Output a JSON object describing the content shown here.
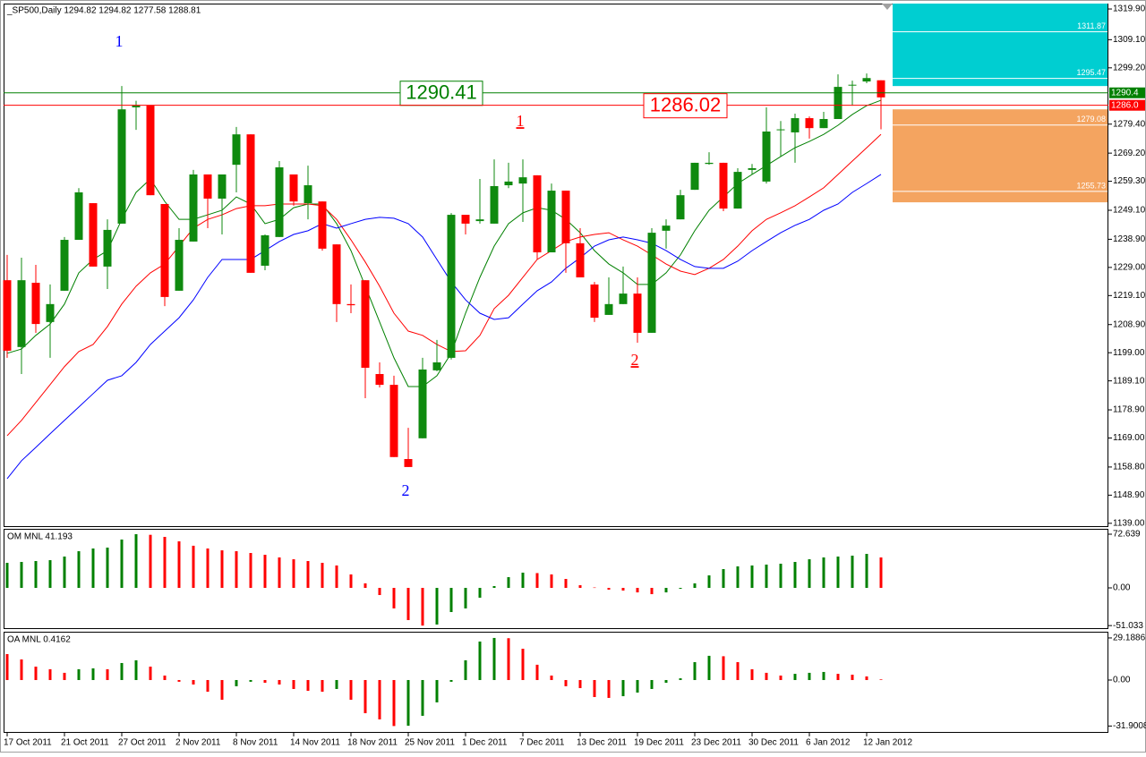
{
  "chart_data": [
    {
      "type": "candlestick",
      "title": "_SP500,Daily  1294.82 1294.82 1277.58 1288.81",
      "categories": [
        "17 Oct 2011",
        null,
        null,
        null,
        "21 Oct 2011",
        null,
        null,
        null,
        "27 Oct 2011",
        null,
        null,
        null,
        "2 Nov 2011",
        null,
        null,
        null,
        "8 Nov 2011",
        null,
        null,
        null,
        "14 Nov 2011",
        null,
        null,
        null,
        "18 Nov 2011",
        null,
        null,
        null,
        "25 Nov 2011",
        null,
        null,
        null,
        "1 Dec 2011",
        null,
        null,
        null,
        "7 Dec 2011",
        null,
        null,
        null,
        "13 Dec 2011",
        null,
        null,
        null,
        "19 Dec 2011",
        null,
        null,
        null,
        "23 Dec 2011",
        null,
        null,
        null,
        "30 Dec 2011",
        null,
        null,
        null,
        "6 Jan 2012",
        null,
        null,
        null,
        "12 Jan 2012",
        null
      ],
      "open": [
        1224.5,
        1201.0,
        1223.6,
        1209.8,
        1220.8,
        1238.7,
        1251.6,
        1229.3,
        1244.4,
        1285.3,
        1285.9,
        1251.3,
        1220.8,
        1238.1,
        1261.7,
        1253.2,
        1265.1,
        1275.8,
        1229.6,
        1239.7,
        1261.7,
        1251.6,
        1252.2,
        1237.1,
        1216.1,
        1224.5,
        1191.5,
        1187.7,
        1161.6,
        1168.9,
        1192.8,
        1197.2,
        1247.5,
        1245.3,
        1244.4,
        1257.9,
        1258.5,
        1261.4,
        1234.3,
        1256.0,
        1237.5,
        1223.0,
        1212.3,
        1216.1,
        1219.8,
        1206.0,
        1241.9,
        1245.9,
        1256.3,
        1265.4,
        1265.8,
        1249.7,
        1263.3,
        1259.2,
        1277.4,
        1276.5,
        1281.5,
        1278.0,
        1281.2,
        1292.8,
        1294.4,
        1294.82
      ],
      "high": [
        1233.4,
        1232.4,
        1229.9,
        1223.0,
        1239.7,
        1256.9,
        1251.6,
        1245.9,
        1292.8,
        1287.6,
        1285.9,
        1251.3,
        1242.8,
        1263.3,
        1261.7,
        1261.7,
        1278.4,
        1275.8,
        1240.6,
        1266.4,
        1261.7,
        1264.8,
        1252.2,
        1237.1,
        1223.0,
        1224.5,
        1195.6,
        1190.9,
        1172.6,
        1197.2,
        1203.5,
        1248.1,
        1247.5,
        1260.1,
        1267.0,
        1265.8,
        1267.0,
        1261.4,
        1258.5,
        1256.0,
        1242.8,
        1223.9,
        1225.5,
        1229.3,
        1225.5,
        1242.8,
        1245.9,
        1256.3,
        1265.8,
        1269.5,
        1265.8,
        1263.9,
        1265.4,
        1285.3,
        1280.5,
        1283.1,
        1282.1,
        1283.7,
        1296.9,
        1294.7,
        1297.2,
        1294.82
      ],
      "low": [
        1197.2,
        1191.5,
        1206.0,
        1197.2,
        1220.8,
        1238.7,
        1229.3,
        1221.4,
        1244.4,
        1277.4,
        1254.4,
        1215.4,
        1220.8,
        1238.1,
        1242.8,
        1240.6,
        1255.4,
        1227.1,
        1228.0,
        1239.7,
        1250.7,
        1245.9,
        1234.9,
        1209.8,
        1212.9,
        1183.0,
        1186.8,
        1162.3,
        1158.8,
        1168.9,
        1192.5,
        1196.6,
        1240.6,
        1244.4,
        1244.4,
        1256.9,
        1245.0,
        1231.8,
        1234.3,
        1227.1,
        1225.5,
        1209.8,
        1212.3,
        1216.1,
        1202.5,
        1206.0,
        1235.6,
        1245.9,
        1256.3,
        1265.1,
        1248.8,
        1249.7,
        1261.7,
        1258.5,
        1268.0,
        1265.8,
        1274.3,
        1278.0,
        1281.2,
        1285.9,
        1293.8,
        1277.58
      ],
      "close": [
        1199.7,
        1224.5,
        1209.1,
        1216.1,
        1238.7,
        1255.4,
        1229.3,
        1242.2,
        1284.6,
        1285.9,
        1254.4,
        1218.6,
        1238.7,
        1261.7,
        1253.2,
        1261.7,
        1275.8,
        1227.1,
        1240.3,
        1264.2,
        1252.2,
        1257.9,
        1235.6,
        1216.1,
        1215.7,
        1193.7,
        1187.7,
        1162.3,
        1158.8,
        1193.1,
        1195.6,
        1247.5,
        1244.4,
        1245.9,
        1257.6,
        1259.2,
        1260.7,
        1234.3,
        1256.0,
        1237.5,
        1225.5,
        1211.3,
        1216.1,
        1219.8,
        1206.0,
        1241.2,
        1243.7,
        1254.4,
        1265.8,
        1265.8,
        1249.7,
        1262.6,
        1263.9,
        1276.8,
        1277.4,
        1281.5,
        1278.0,
        1281.2,
        1292.5,
        1293.1,
        1295.6,
        1288.81
      ],
      "up_color": "#0f8a0f",
      "down_color": "#ff0000",
      "lines": [
        {
          "color": "#008000",
          "values": [
            1198.8,
            1200.3,
            1205.1,
            1209.1,
            1216.1,
            1227.1,
            1231.8,
            1234.9,
            1245.9,
            1255.4,
            1260.1,
            1252.2,
            1245.9,
            1245.9,
            1247.5,
            1249.1,
            1253.8,
            1251.3,
            1244.4,
            1245.9,
            1250.0,
            1251.3,
            1251.3,
            1244.4,
            1234.9,
            1222.4,
            1209.8,
            1197.2,
            1187.1,
            1187.1,
            1190.9,
            1198.8,
            1212.9,
            1225.5,
            1236.5,
            1244.4,
            1248.2,
            1250.0,
            1249.1,
            1245.9,
            1241.2,
            1234.9,
            1230.2,
            1227.1,
            1223.0,
            1223.0,
            1227.1,
            1233.4,
            1241.9,
            1249.1,
            1253.8,
            1258.5,
            1261.7,
            1264.8,
            1268.0,
            1271.1,
            1273.3,
            1275.8,
            1279.0,
            1282.8,
            1285.9,
            1287.8
          ]
        },
        {
          "color": "#ff0000",
          "values": [
            1169.8,
            1175.2,
            1181.5,
            1187.8,
            1194.1,
            1199.4,
            1201.9,
            1208.2,
            1216.1,
            1222.4,
            1227.1,
            1230.2,
            1236.5,
            1242.8,
            1245.9,
            1247.5,
            1249.7,
            1250.7,
            1250.7,
            1251.3,
            1251.3,
            1251.3,
            1250.7,
            1245.9,
            1238.7,
            1230.9,
            1222.4,
            1212.9,
            1206.6,
            1205.1,
            1201.9,
            1199.4,
            1199.7,
            1205.1,
            1214.5,
            1219.2,
            1225.5,
            1231.8,
            1234.9,
            1238.1,
            1239.7,
            1240.6,
            1241.2,
            1238.7,
            1236.5,
            1233.4,
            1230.2,
            1227.7,
            1226.5,
            1228.7,
            1231.8,
            1236.5,
            1241.9,
            1245.9,
            1248.2,
            1250.7,
            1253.8,
            1257.0,
            1261.7,
            1266.4,
            1271.1,
            1275.8
          ]
        },
        {
          "color": "#0000ff",
          "values": [
            1154.7,
            1161.0,
            1165.7,
            1170.5,
            1175.2,
            1179.9,
            1184.6,
            1189.3,
            1190.9,
            1195.6,
            1201.9,
            1206.6,
            1211.3,
            1217.6,
            1225.5,
            1231.8,
            1231.8,
            1231.8,
            1234.9,
            1238.1,
            1240.6,
            1241.9,
            1244.4,
            1242.8,
            1244.4,
            1245.9,
            1246.6,
            1246.3,
            1244.4,
            1239.7,
            1231.8,
            1223.9,
            1217.6,
            1212.9,
            1210.7,
            1211.3,
            1216.1,
            1220.8,
            1223.9,
            1228.7,
            1232.4,
            1236.5,
            1238.7,
            1239.7,
            1238.7,
            1237.5,
            1234.9,
            1231.8,
            1229.3,
            1228.7,
            1228.7,
            1231.2,
            1234.9,
            1238.1,
            1241.2,
            1243.8,
            1245.9,
            1249.1,
            1251.3,
            1255.4,
            1258.5,
            1261.7
          ]
        }
      ],
      "levels": [
        {
          "value": 1290.41,
          "axis_label": "1290.4",
          "color": "#008000"
        },
        {
          "value": 1286.02,
          "axis_label": "1286.0",
          "color": "#ff0000"
        }
      ],
      "zones": [
        {
          "color": "#00ced1",
          "range": [
            1292.8,
            1321.8
          ],
          "levels": [
            1311.87,
            1295.47
          ]
        },
        {
          "color": "#f4a460",
          "range": [
            1251.9,
            1284.6
          ],
          "levels": [
            1279.08,
            1255.73
          ]
        }
      ],
      "annotations": [
        {
          "text": "1",
          "color": "#0000ff"
        },
        {
          "text": "2",
          "color": "#0000ff"
        },
        {
          "text": "1",
          "color": "#ff0000"
        },
        {
          "text": "2",
          "color": "#ff0000"
        }
      ],
      "ylim": [
        1138.0,
        1321.8
      ],
      "yticks": [
        {
          "value": 1319.9,
          "label": "1319.90"
        },
        {
          "value": 1309.1,
          "label": "1309.10"
        },
        {
          "value": 1299.2,
          "label": "1299.20"
        },
        {
          "value": 1279.4,
          "label": "1279.40"
        },
        {
          "value": 1269.2,
          "label": "1269.20"
        },
        {
          "value": 1259.3,
          "label": "1259.30"
        },
        {
          "value": 1249.1,
          "label": "1249.10"
        },
        {
          "value": 1238.9,
          "label": "1238.90"
        },
        {
          "value": 1229,
          "label": "1229.00"
        },
        {
          "value": 1219.1,
          "label": "1219.10"
        },
        {
          "value": 1208.9,
          "label": "1208.90"
        },
        {
          "value": 1199,
          "label": "1199.00"
        },
        {
          "value": 1189.1,
          "label": "1189.10"
        },
        {
          "value": 1178.9,
          "label": "1178.90"
        },
        {
          "value": 1169,
          "label": "1169.00"
        },
        {
          "value": 1158.8,
          "label": "1158.80"
        },
        {
          "value": 1148.9,
          "label": "1148.90"
        },
        {
          "value": 1139,
          "label": "1139.00"
        }
      ]
    },
    {
      "type": "histogram",
      "title": "OM MNL 41.193",
      "up_color": "#008000",
      "down_color": "#ff0000",
      "first_color": "#008000",
      "values": [
        33.9,
        35.1,
        36.3,
        37.5,
        42.4,
        49.6,
        53.3,
        54.5,
        65.4,
        72.639,
        71.8,
        69.0,
        63.0,
        57.0,
        53.3,
        50.8,
        49.6,
        47.2,
        44.8,
        41.2,
        38.7,
        36.3,
        33.9,
        30.3,
        18.2,
        6.1,
        -9.7,
        -27.8,
        -43.6,
        -51.033,
        -49.6,
        -32.7,
        -27.8,
        -13.3,
        2.4,
        14.5,
        20.6,
        20.0,
        18.2,
        12.1,
        3.6,
        0.5,
        -2.4,
        -3.6,
        -6.1,
        -8.5,
        -6.1,
        -1.2,
        6.1,
        16.9,
        25.4,
        29.1,
        30.3,
        31.5,
        32.7,
        35.1,
        38.7,
        41.2,
        42.4,
        43.6,
        46.0,
        41.193
      ],
      "ylim": [
        -54.5,
        79.9
      ],
      "yticks": [
        72.639,
        {
          "value": 0,
          "label": "0.00"
        },
        -51.033
      ]
    },
    {
      "type": "histogram",
      "title": "OA MNL 0.4162",
      "up_color": "#008000",
      "down_color": "#ff0000",
      "first_color": "#ff0000",
      "values": [
        18.0,
        14.3,
        9.3,
        7.5,
        5.0,
        7.5,
        8.1,
        7.5,
        11.8,
        13.7,
        9.3,
        3.1,
        -1.2,
        -3.1,
        -8.1,
        -13.7,
        -4.3,
        -1.2,
        -1.9,
        -3.1,
        -6.2,
        -7.5,
        -8.1,
        -6.2,
        -13.7,
        -23.0,
        -27.3,
        -31.9008,
        -31.7,
        -24.8,
        -15.5,
        -1.2,
        13.7,
        26.7,
        29.1886,
        29.0,
        21.7,
        10.6,
        3.1,
        -4.3,
        -5.6,
        -11.8,
        -12.4,
        -11.2,
        -8.7,
        -6.2,
        -1.9,
        1.2,
        12.4,
        16.8,
        16.5,
        12.4,
        7.5,
        5.0,
        3.1,
        4.3,
        5.0,
        5.6,
        4.3,
        3.7,
        2.5,
        0.4162
      ],
      "ylim": [
        -36.0,
        33.5
      ],
      "yticks": [
        29.1886,
        {
          "value": 0,
          "label": "0.00"
        },
        -31.9008
      ]
    }
  ]
}
